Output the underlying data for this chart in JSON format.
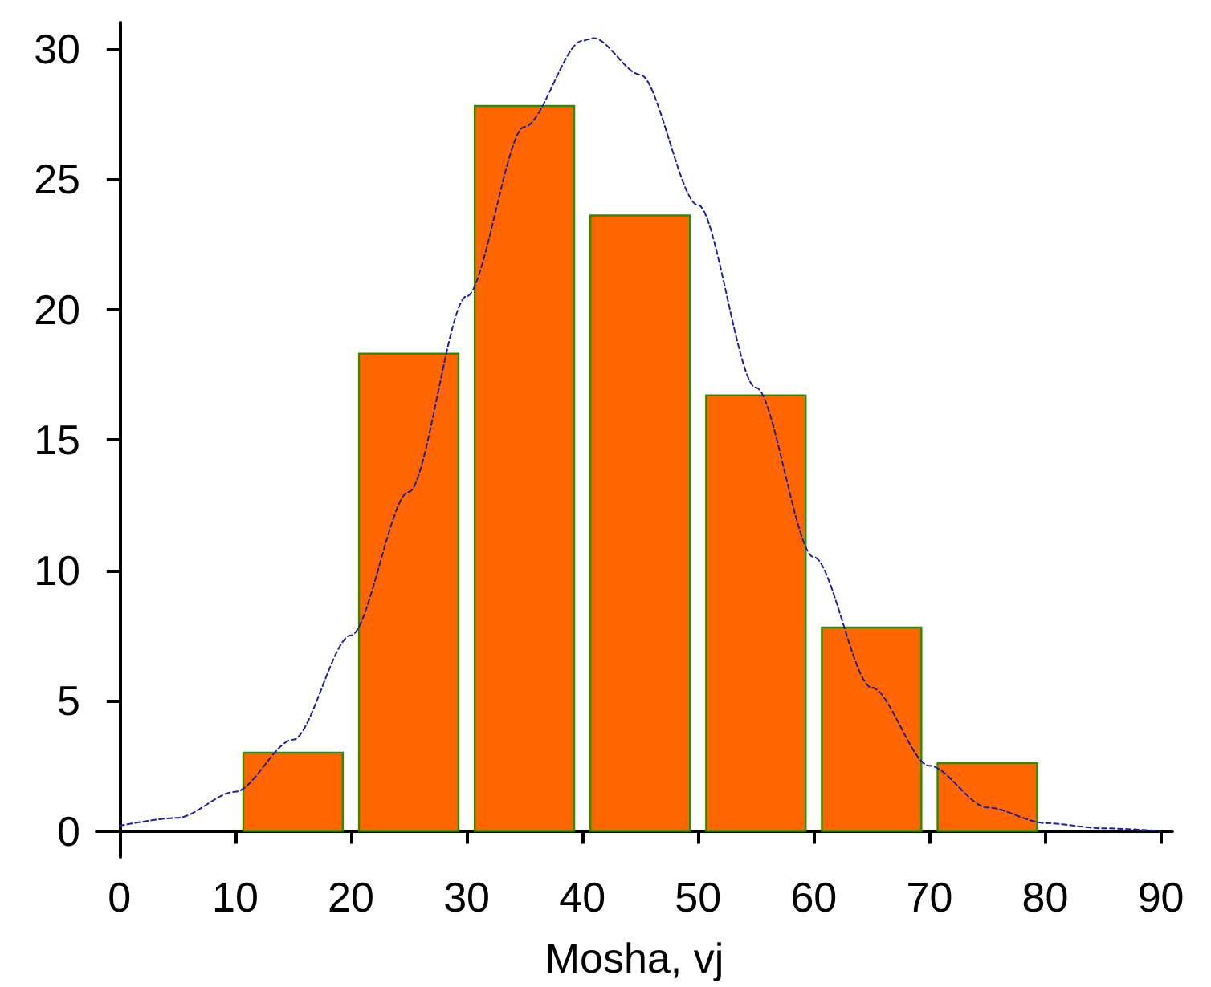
{
  "chart_data": {
    "type": "histogram",
    "xlabel": "Mosha, vj",
    "bins": [
      10,
      20,
      30,
      40,
      50,
      60,
      70,
      80
    ],
    "values": [
      3,
      18.3,
      27.8,
      23.6,
      16.7,
      7.8,
      2.6
    ],
    "color": "#ff6600",
    "series": [
      {
        "type": "line",
        "color": "#1f1f9f",
        "line_style": "dashed",
        "marker": "none",
        "x": [
          0,
          5,
          10,
          15,
          20,
          25,
          30,
          35,
          40,
          41,
          45,
          50,
          55,
          60,
          65,
          70,
          75,
          80,
          85,
          90
        ],
        "values": [
          0.2,
          0.5,
          1.5,
          3.5,
          7.5,
          13,
          20.5,
          27,
          30.3,
          30.4,
          29,
          24,
          17,
          10.5,
          5.5,
          2.5,
          0.9,
          0.3,
          0.1,
          0
        ]
      }
    ],
    "xlim": [
      -2,
      91
    ],
    "xticks": [
      0,
      10,
      20,
      30,
      40,
      50,
      60,
      70,
      80,
      90
    ],
    "ylim": [
      -1,
      31
    ],
    "yticks": [
      0,
      5,
      10,
      15,
      20,
      25,
      30
    ],
    "grid": false,
    "legend": false
  }
}
